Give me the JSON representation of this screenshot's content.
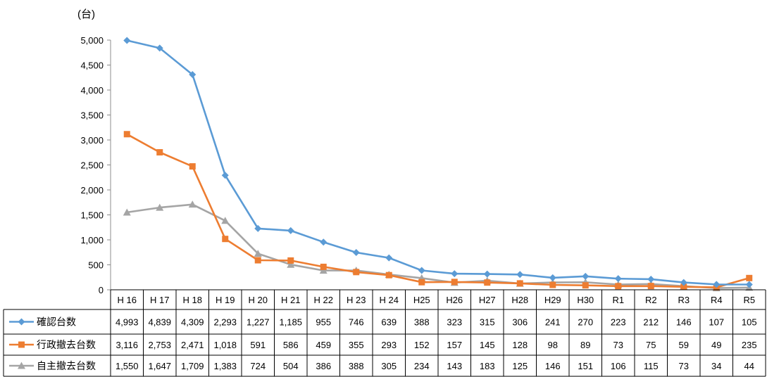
{
  "chart_data": {
    "type": "line",
    "unit_label": "(台)",
    "categories": [
      "H16",
      "H17",
      "H18",
      "H19",
      "H20",
      "H21",
      "H22",
      "H23",
      "H24",
      "H25",
      "H26",
      "H27",
      "H28",
      "H29",
      "H30",
      "R1",
      "R2",
      "R3",
      "R4",
      "R5"
    ],
    "category_labels": [
      "H 16",
      "H 17",
      "H 18",
      "H 19",
      "H 20",
      "H 21",
      "H 22",
      "H 23",
      "H 24",
      "H25",
      "H26",
      "H27",
      "H28",
      "H29",
      "H30",
      "R1",
      "R2",
      "R3",
      "R4",
      "R5"
    ],
    "ylim": [
      0,
      5000
    ],
    "yticks": [
      0,
      500,
      1000,
      1500,
      2000,
      2500,
      3000,
      3500,
      4000,
      4500,
      5000
    ],
    "ytick_labels": [
      "0",
      "500",
      "1,000",
      "1,500",
      "2,000",
      "2,500",
      "3,000",
      "3,500",
      "4,000",
      "4,500",
      "5,000"
    ],
    "grid": false,
    "legend": "data-table",
    "series": [
      {
        "name": "確認台数",
        "color": "#5B9BD5",
        "marker": "diamond",
        "values": [
          4993,
          4839,
          4309,
          2293,
          1227,
          1185,
          955,
          746,
          639,
          388,
          323,
          315,
          306,
          241,
          270,
          223,
          212,
          146,
          107,
          105
        ],
        "value_labels": [
          "4,993",
          "4,839",
          "4,309",
          "2,293",
          "1,227",
          "1,185",
          "955",
          "746",
          "639",
          "388",
          "323",
          "315",
          "306",
          "241",
          "270",
          "223",
          "212",
          "146",
          "107",
          "105"
        ]
      },
      {
        "name": "行政撤去台数",
        "color": "#ED7D31",
        "marker": "square",
        "values": [
          3116,
          2753,
          2471,
          1018,
          591,
          586,
          459,
          355,
          293,
          152,
          157,
          145,
          128,
          98,
          89,
          73,
          75,
          59,
          49,
          235
        ],
        "value_labels": [
          "3,116",
          "2,753",
          "2,471",
          "1,018",
          "591",
          "586",
          "459",
          "355",
          "293",
          "152",
          "157",
          "145",
          "128",
          "98",
          "89",
          "73",
          "75",
          "59",
          "49",
          "235"
        ]
      },
      {
        "name": "自主撤去台数",
        "color": "#A5A5A5",
        "marker": "triangle",
        "values": [
          1550,
          1647,
          1709,
          1383,
          724,
          504,
          386,
          388,
          305,
          234,
          143,
          183,
          125,
          146,
          151,
          106,
          115,
          73,
          34,
          44
        ],
        "value_labels": [
          "1,550",
          "1,647",
          "1,709",
          "1,383",
          "724",
          "504",
          "386",
          "388",
          "305",
          "234",
          "143",
          "183",
          "125",
          "146",
          "151",
          "106",
          "115",
          "73",
          "34",
          "44"
        ]
      }
    ]
  }
}
